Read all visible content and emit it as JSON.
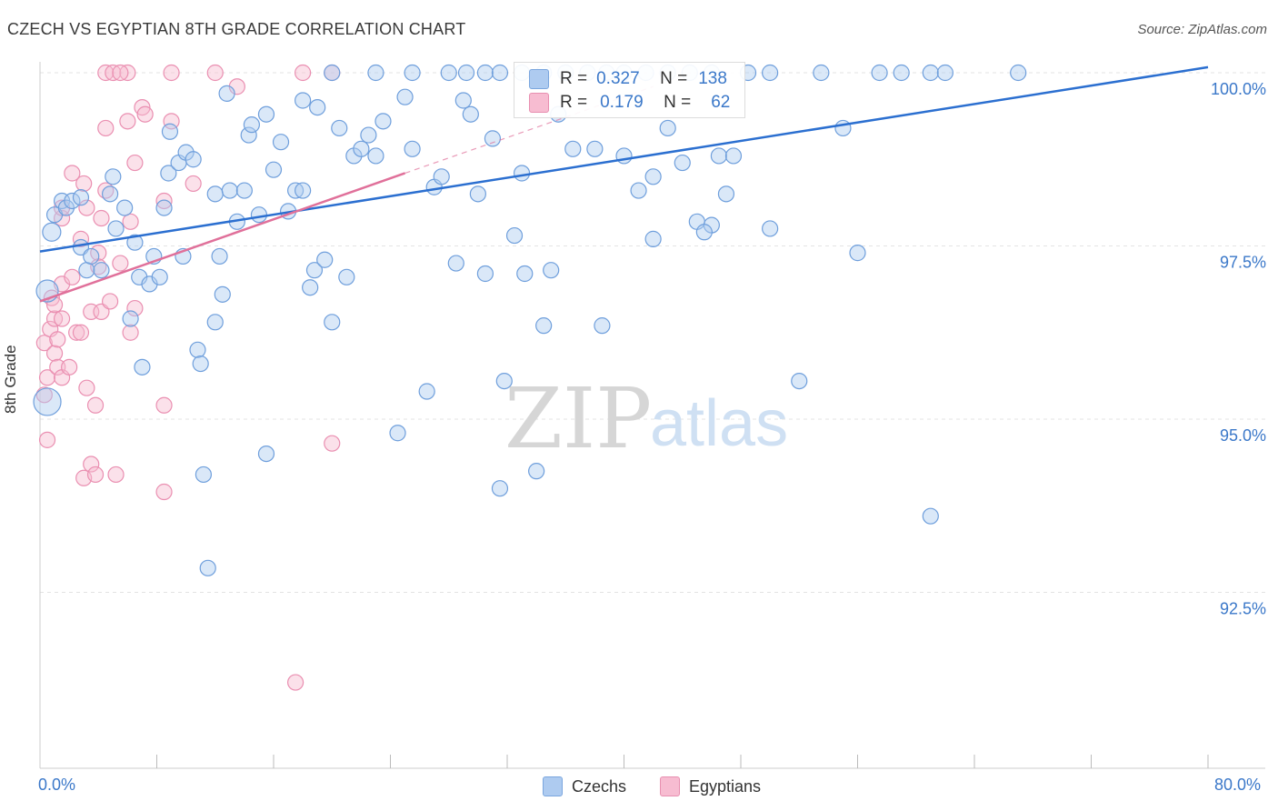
{
  "header": {
    "title": "CZECH VS EGYPTIAN 8TH GRADE CORRELATION CHART",
    "source": "Source: ZipAtlas.com"
  },
  "watermark": {
    "zip": "ZIP",
    "atlas": "atlas"
  },
  "legend": {
    "r_label": "R =",
    "n_label": "N =",
    "czech": {
      "r": "0.327",
      "n": "138",
      "color": "#aecbf0"
    },
    "egypt": {
      "r": "0.179",
      "n": "62",
      "color": "#f7bcd1"
    }
  },
  "bottom_legend": {
    "czech": "Czechs",
    "egypt": "Egyptians"
  },
  "axis_text": {
    "x_min": "0.0%",
    "x_max": "80.0%",
    "y_title": "8th Grade"
  },
  "colors": {
    "czech_line": "#2b6fd0",
    "egypt_line": "#e0709a",
    "czech_fill": "#aecbf0",
    "egypt_fill": "#f7bcd1"
  },
  "chart_data": {
    "type": "scatter",
    "title": "CZECH VS EGYPTIAN 8TH GRADE CORRELATION CHART",
    "xlabel": "",
    "ylabel": "8th Grade",
    "xlim": [
      0,
      80
    ],
    "ylim": [
      90.3,
      100.5
    ],
    "y_ticks": [
      100.0,
      97.5,
      95.0,
      92.5
    ],
    "y_tick_labels": [
      "100.0%",
      "97.5%",
      "95.0%",
      "92.5%"
    ],
    "grid": true,
    "series": [
      {
        "name": "Czechs",
        "r": 0.327,
        "n": 138,
        "trend": {
          "x": [
            0,
            80
          ],
          "y": [
            97.42,
            100.08
          ]
        },
        "points": [
          [
            0.5,
            95.25
          ],
          [
            0.5,
            96.85
          ],
          [
            0.8,
            97.7
          ],
          [
            1.0,
            97.95
          ],
          [
            1.5,
            98.15
          ],
          [
            1.8,
            98.05
          ],
          [
            2.2,
            98.15
          ],
          [
            2.8,
            98.2
          ],
          [
            2.8,
            97.48
          ],
          [
            3.2,
            97.15
          ],
          [
            3.5,
            97.35
          ],
          [
            4.2,
            97.15
          ],
          [
            4.8,
            98.25
          ],
          [
            5.0,
            98.5
          ],
          [
            5.2,
            97.75
          ],
          [
            5.8,
            98.05
          ],
          [
            6.2,
            96.45
          ],
          [
            6.5,
            97.55
          ],
          [
            6.8,
            97.05
          ],
          [
            7.0,
            95.75
          ],
          [
            7.5,
            96.95
          ],
          [
            7.8,
            97.35
          ],
          [
            8.2,
            97.05
          ],
          [
            8.5,
            98.05
          ],
          [
            8.8,
            98.55
          ],
          [
            8.9,
            99.15
          ],
          [
            9.5,
            98.7
          ],
          [
            9.8,
            97.35
          ],
          [
            10.0,
            98.85
          ],
          [
            10.5,
            98.75
          ],
          [
            10.8,
            96.0
          ],
          [
            11.0,
            95.8
          ],
          [
            11.2,
            94.2
          ],
          [
            11.5,
            92.85
          ],
          [
            12.0,
            96.4
          ],
          [
            12.0,
            98.25
          ],
          [
            12.3,
            97.35
          ],
          [
            12.5,
            96.8
          ],
          [
            12.8,
            99.7
          ],
          [
            13.0,
            98.3
          ],
          [
            13.5,
            97.85
          ],
          [
            14.0,
            98.3
          ],
          [
            14.3,
            99.1
          ],
          [
            14.5,
            99.25
          ],
          [
            15.0,
            97.95
          ],
          [
            15.5,
            99.4
          ],
          [
            15.5,
            94.5
          ],
          [
            16.0,
            98.6
          ],
          [
            16.5,
            99.0
          ],
          [
            17.0,
            98.0
          ],
          [
            17.5,
            98.3
          ],
          [
            18.0,
            99.6
          ],
          [
            18.0,
            98.3
          ],
          [
            18.5,
            96.9
          ],
          [
            18.8,
            97.15
          ],
          [
            19.0,
            99.5
          ],
          [
            19.5,
            97.3
          ],
          [
            20.0,
            96.4
          ],
          [
            20.5,
            99.2
          ],
          [
            21.0,
            97.05
          ],
          [
            21.5,
            98.8
          ],
          [
            22.0,
            98.9
          ],
          [
            22.5,
            99.1
          ],
          [
            23.0,
            98.8
          ],
          [
            23.5,
            99.3
          ],
          [
            24.5,
            94.8
          ],
          [
            25.0,
            99.65
          ],
          [
            25.5,
            98.9
          ],
          [
            26.5,
            95.4
          ],
          [
            27.0,
            98.35
          ],
          [
            27.5,
            98.5
          ],
          [
            28.5,
            97.25
          ],
          [
            29.0,
            99.6
          ],
          [
            29.5,
            99.4
          ],
          [
            30.0,
            98.25
          ],
          [
            30.5,
            97.1
          ],
          [
            31.0,
            99.05
          ],
          [
            31.5,
            94.0
          ],
          [
            31.8,
            95.55
          ],
          [
            32.5,
            97.65
          ],
          [
            33.0,
            98.55
          ],
          [
            34.0,
            94.25
          ],
          [
            34.5,
            96.35
          ],
          [
            35.0,
            97.15
          ],
          [
            36.5,
            98.9
          ],
          [
            38.0,
            98.9
          ],
          [
            38.5,
            96.35
          ],
          [
            40.0,
            98.8
          ],
          [
            41.0,
            98.3
          ],
          [
            42.0,
            98.5
          ],
          [
            43.0,
            99.2
          ],
          [
            44.0,
            98.7
          ],
          [
            45.0,
            97.85
          ],
          [
            46.0,
            97.8
          ],
          [
            46.5,
            98.8
          ],
          [
            47.0,
            98.25
          ],
          [
            47.5,
            98.8
          ],
          [
            50.0,
            97.75
          ],
          [
            52.0,
            95.55
          ],
          [
            55.0,
            99.2
          ],
          [
            56.0,
            97.4
          ],
          [
            61.0,
            93.6
          ],
          [
            20.0,
            100.0
          ],
          [
            23.0,
            100.0
          ],
          [
            25.5,
            100.0
          ],
          [
            28.0,
            100.0
          ],
          [
            29.2,
            100.0
          ],
          [
            30.5,
            100.0
          ],
          [
            31.5,
            100.0
          ],
          [
            33.0,
            100.0
          ],
          [
            34.5,
            100.0
          ],
          [
            36.0,
            100.0
          ],
          [
            37.5,
            100.0
          ],
          [
            38.8,
            100.0
          ],
          [
            40.0,
            100.0
          ],
          [
            41.5,
            100.0
          ],
          [
            43.0,
            100.0
          ],
          [
            44.5,
            100.0
          ],
          [
            46.0,
            100.0
          ],
          [
            48.5,
            100.0
          ],
          [
            50.0,
            100.0
          ],
          [
            53.5,
            100.0
          ],
          [
            57.5,
            100.0
          ],
          [
            59.0,
            100.0
          ],
          [
            61.0,
            100.0
          ],
          [
            62.0,
            100.0
          ],
          [
            67.0,
            100.0
          ],
          [
            42.0,
            97.6
          ],
          [
            45.5,
            97.7
          ],
          [
            35.5,
            99.4
          ],
          [
            33.2,
            97.1
          ]
        ]
      },
      {
        "name": "Egyptians",
        "r": 0.179,
        "n": 62,
        "trend_solid": {
          "x": [
            0,
            25
          ],
          "y": [
            96.7,
            98.55
          ]
        },
        "trend_dashed": {
          "x": [
            25,
            42
          ],
          "y": [
            98.55,
            99.8
          ]
        },
        "points": [
          [
            0.3,
            95.35
          ],
          [
            0.3,
            96.1
          ],
          [
            0.5,
            94.7
          ],
          [
            0.5,
            95.6
          ],
          [
            0.7,
            96.3
          ],
          [
            0.8,
            96.75
          ],
          [
            1.0,
            96.45
          ],
          [
            1.0,
            96.65
          ],
          [
            1.0,
            95.95
          ],
          [
            1.2,
            96.15
          ],
          [
            1.2,
            95.75
          ],
          [
            1.5,
            95.6
          ],
          [
            1.5,
            96.45
          ],
          [
            1.5,
            96.95
          ],
          [
            1.5,
            97.9
          ],
          [
            1.5,
            98.05
          ],
          [
            2.0,
            95.75
          ],
          [
            2.2,
            97.05
          ],
          [
            2.2,
            98.55
          ],
          [
            2.5,
            96.25
          ],
          [
            2.8,
            96.25
          ],
          [
            2.8,
            97.6
          ],
          [
            3.0,
            94.15
          ],
          [
            3.0,
            98.4
          ],
          [
            3.2,
            98.05
          ],
          [
            3.2,
            95.45
          ],
          [
            3.5,
            94.35
          ],
          [
            3.5,
            96.55
          ],
          [
            3.8,
            95.2
          ],
          [
            3.8,
            94.2
          ],
          [
            4.0,
            97.4
          ],
          [
            4.0,
            97.2
          ],
          [
            4.2,
            97.9
          ],
          [
            4.2,
            96.55
          ],
          [
            4.5,
            99.2
          ],
          [
            4.5,
            98.3
          ],
          [
            4.8,
            96.7
          ],
          [
            5.2,
            94.2
          ],
          [
            5.5,
            97.25
          ],
          [
            6.0,
            99.3
          ],
          [
            6.2,
            97.85
          ],
          [
            6.2,
            96.25
          ],
          [
            6.5,
            98.7
          ],
          [
            6.5,
            96.6
          ],
          [
            7.0,
            99.5
          ],
          [
            7.2,
            99.4
          ],
          [
            8.5,
            98.15
          ],
          [
            8.5,
            95.2
          ],
          [
            8.5,
            93.95
          ],
          [
            9.0,
            99.3
          ],
          [
            10.5,
            98.4
          ],
          [
            13.5,
            99.8
          ],
          [
            17.5,
            91.2
          ],
          [
            20.0,
            94.65
          ],
          [
            4.5,
            100.0
          ],
          [
            5.0,
            100.0
          ],
          [
            6.0,
            100.0
          ],
          [
            9.0,
            100.0
          ],
          [
            12.0,
            100.0
          ],
          [
            18.0,
            100.0
          ],
          [
            20.0,
            100.0
          ],
          [
            5.5,
            100.0
          ]
        ]
      }
    ]
  }
}
